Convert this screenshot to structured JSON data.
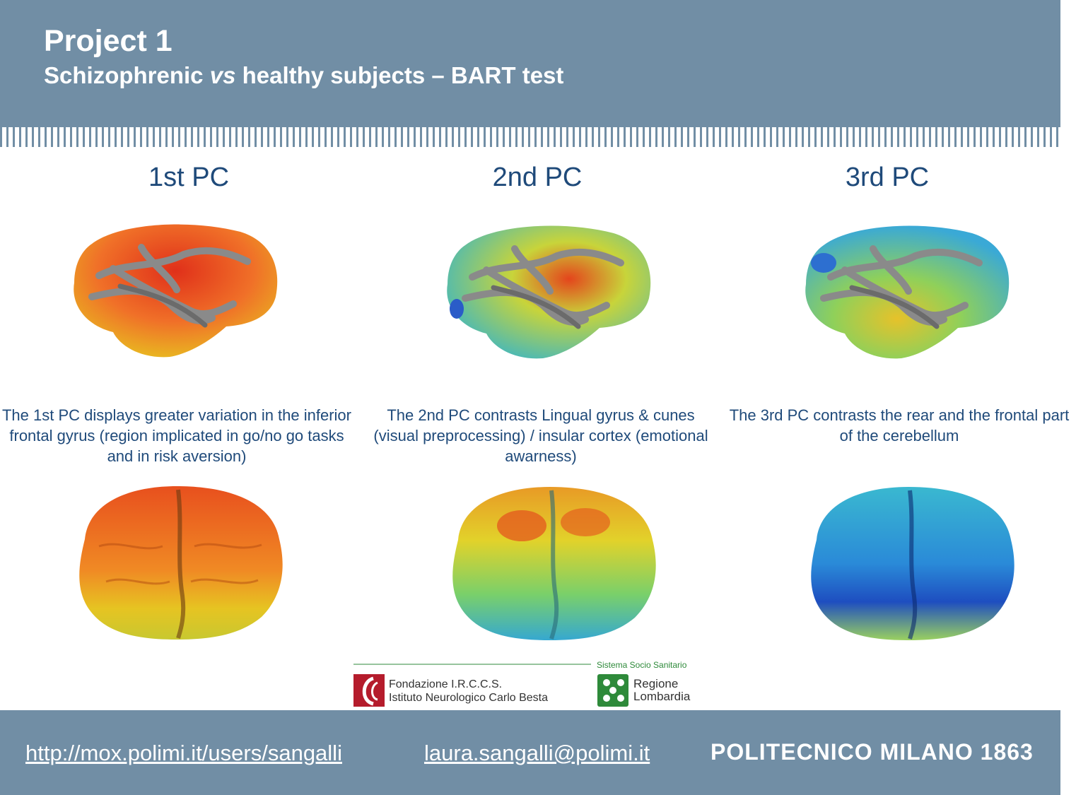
{
  "header": {
    "title": "Project 1",
    "subtitle_pre": "Schizophrenic ",
    "subtitle_em": "vs",
    "subtitle_post": " healthy subjects – BART test"
  },
  "columns": [
    {
      "title": "1st PC",
      "caption": "The 1st PC displays greater variation in the inferior frontal gyrus (region implicated in go/no go tasks and in risk aversion)"
    },
    {
      "title": "2nd PC",
      "caption": "The 2nd PC contrasts Lingual gyrus & cunes (visual preprocessing) / insular cortex (emotional awarness)"
    },
    {
      "title": "3rd PC",
      "caption": "The 3rd PC contrasts the rear and the frontal part of the cerebellum"
    }
  ],
  "logos": {
    "system": "Sistema Socio Sanitario",
    "besta_line1": "Fondazione I.R.C.C.S.",
    "besta_line2": "Istituto Neurologico Carlo Besta",
    "region_line1": "Regione",
    "region_line2": "Lombardia"
  },
  "footer": {
    "url": "http://mox.polimi.it/users/sangalli",
    "email": "laura.sangalli@polimi.it",
    "institution": "POLITECNICO MILANO 1863"
  },
  "colors": {
    "bar": "#718ea5",
    "heading": "#1f4a7a",
    "pc1": "#e8501e",
    "pc2": "#4fc0c0",
    "pc3": "#3aa9d6"
  }
}
